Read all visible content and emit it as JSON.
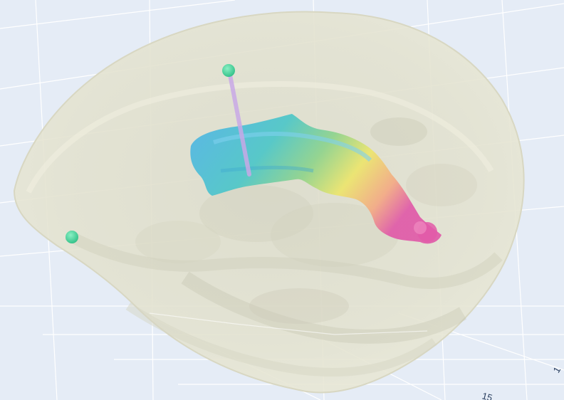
{
  "viewer": {
    "background_color": "#e5ecf6",
    "grid_color": "#ffffff",
    "brain_color": "#e8e6cf",
    "brain_shadow_color": "#c9c8b6",
    "marker_color": "#3fd29a",
    "probe_color": "#c8a8e6"
  },
  "axes": {
    "tick_labels": [
      "1",
      "15"
    ]
  },
  "structure": {
    "name_icon": "ventricle-surface",
    "colorscale": [
      "#55b8e6",
      "#4cc6c8",
      "#7fd48a",
      "#e8e26a",
      "#f2a87e",
      "#e25aa8"
    ]
  }
}
